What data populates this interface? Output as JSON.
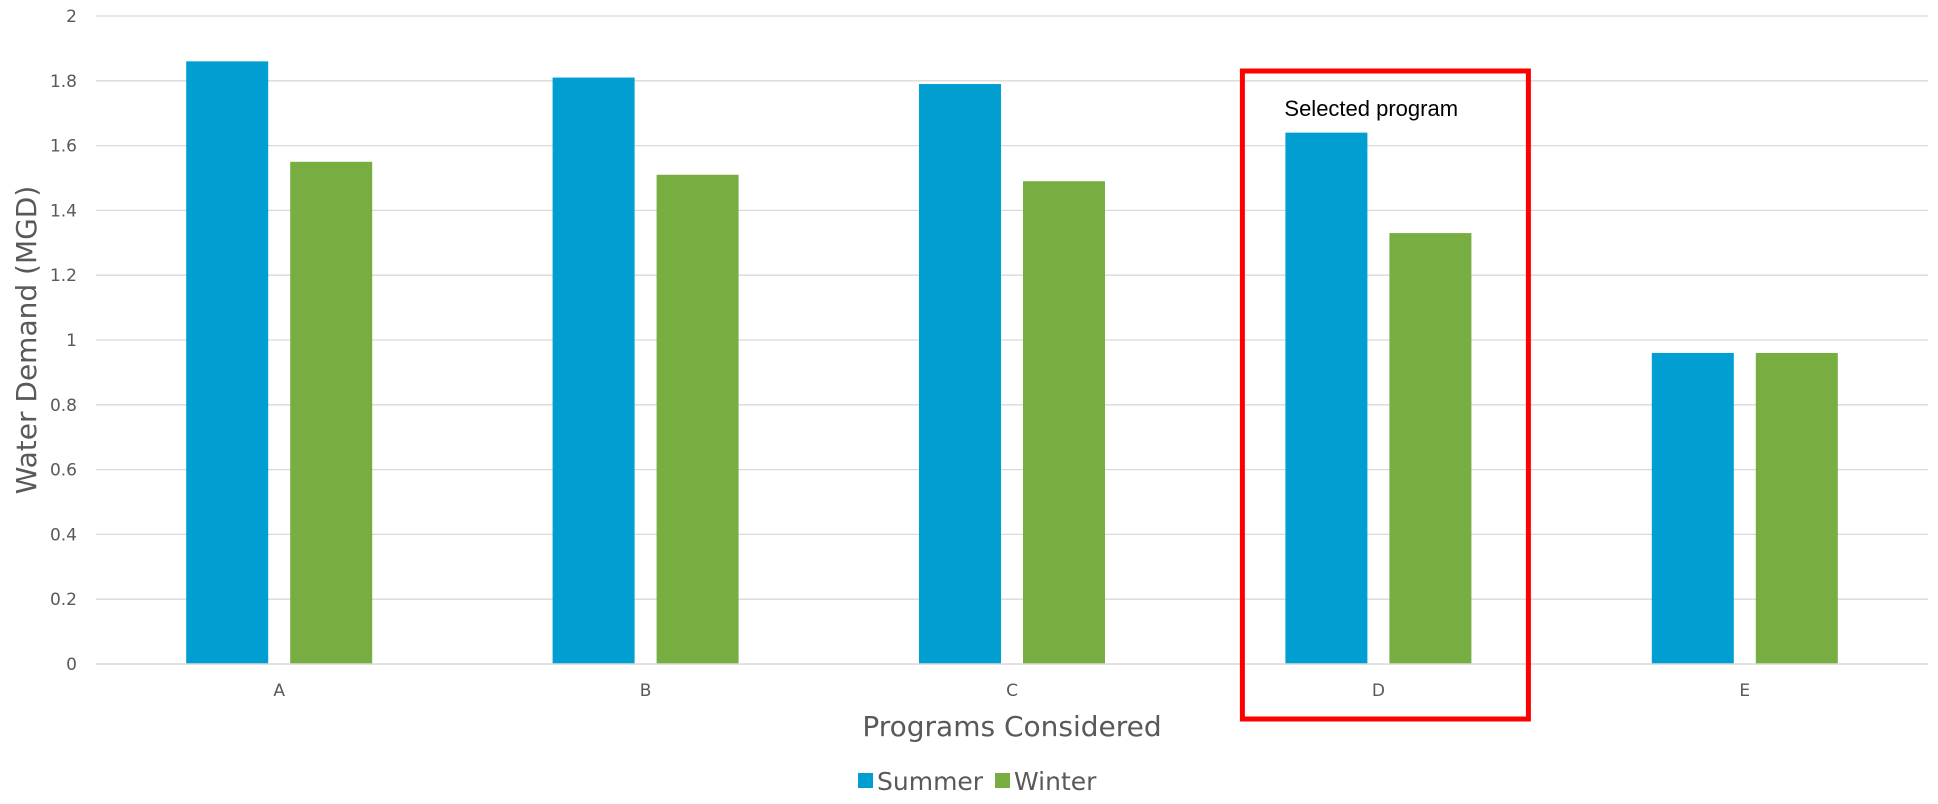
{
  "chart_data": {
    "type": "bar",
    "categories": [
      "A",
      "B",
      "C",
      "D",
      "E"
    ],
    "series": [
      {
        "name": "Summer",
        "color": "#009ED1",
        "values": [
          1.86,
          1.81,
          1.79,
          1.64,
          0.96
        ]
      },
      {
        "name": "Winter",
        "color": "#78AE41",
        "values": [
          1.55,
          1.51,
          1.49,
          1.33,
          0.96
        ]
      }
    ],
    "title": "",
    "xlabel": "Programs Considered",
    "ylabel": "Water Demand (MGD)",
    "ylim": [
      0,
      2
    ],
    "yticks": [
      "0",
      "0.2",
      "0.4",
      "0.6",
      "0.8",
      "1",
      "1.2",
      "1.4",
      "1.6",
      "1.8",
      "2"
    ],
    "grid": true,
    "legend": "bottom",
    "annotation": {
      "text": "Selected program",
      "category": "D",
      "box_color": "#FF0000"
    }
  }
}
